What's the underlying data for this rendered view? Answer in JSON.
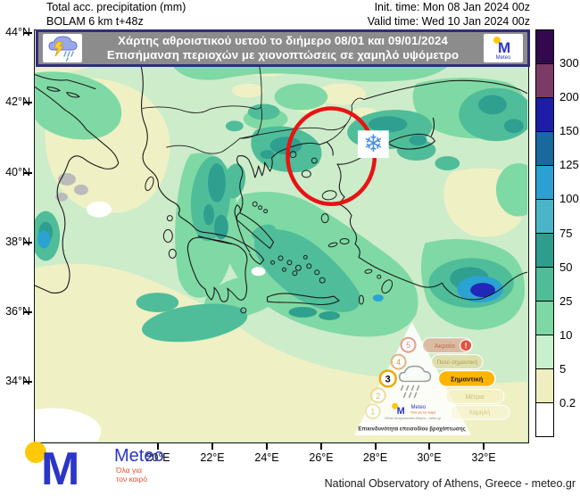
{
  "header": {
    "product": "Total acc. precipitation (mm)",
    "model": "BOLAM 6 km t+48z",
    "init_time": "Init. time: Mon 08 Jan 2024 00z",
    "valid_time": "Valid time: Wed 10 Jan 2024 00z"
  },
  "banner": {
    "line1": "Χάρτης αθροιστικού υετού το διήμερο 08/01 και 09/01/2024",
    "line2": "Επισήμανση περιοχών με χιονοπτώσεις σε χαμηλό υψόμετρο",
    "logo_label": "Meteo"
  },
  "colorbar": {
    "unit_values": [
      "300",
      "200",
      "150",
      "125",
      "100",
      "75",
      "50",
      "25",
      "10",
      "5",
      "0.2"
    ],
    "segment_colors": [
      "#32094e",
      "#7c3a67",
      "#1d1da8",
      "#17699e",
      "#2ba0d2",
      "#4ab5c8",
      "#2d9e8e",
      "#4fbd97",
      "#7ed8a3",
      "#c9f0cd",
      "#eeeec0",
      "#ffffff"
    ]
  },
  "axes": {
    "lat_ticks": [
      "44°N",
      "42°N",
      "40°N",
      "38°N",
      "36°N",
      "34°N"
    ],
    "lon_ticks": [
      "20°E",
      "22°E",
      "24°E",
      "26°E",
      "28°E",
      "30°E",
      "32°E"
    ]
  },
  "map": {
    "snowflake_icon": "❄"
  },
  "hazard_scale": {
    "levels": [
      {
        "num": "5",
        "label": "Ακραία"
      },
      {
        "num": "4",
        "label": "Πολύ σημαντική"
      },
      {
        "num": "3",
        "label": "Σημαντική"
      },
      {
        "num": "2",
        "label": "Μέτρια"
      },
      {
        "num": "1",
        "label": "Χαμηλή"
      }
    ],
    "active_level": "3",
    "caption": "Επικινδυνότητα επεισοδίου βροχόπτωσης",
    "logo_name": "Meteo",
    "logo_tagline": "Όλα για τον καιρό",
    "logo_org": "Εθνικό Αστεροσκοπείο Αθηνών - meteo.gr"
  },
  "footer": {
    "logo_name": "Meteo",
    "logo_tagline_line1": "Όλα για",
    "logo_tagline_line2": "τον καιρό",
    "credit": "National Observatory of Athens, Greece - meteo.gr"
  },
  "chart_data": {
    "type": "heatmap",
    "title": "Total acc. precipitation (mm)",
    "model_run": "BOLAM 6 km t+48z",
    "init_time": "Mon 08 Jan 2024 00z",
    "valid_time": "Wed 10 Jan 2024 00z",
    "region": "Greece and surrounding area",
    "lon_range_deg_e": [
      15.4,
      33.6
    ],
    "lat_range_deg_n": [
      32.2,
      44.1
    ],
    "scale_boundaries_mm": [
      0.2,
      5,
      10,
      25,
      50,
      75,
      100,
      125,
      150,
      200,
      300
    ],
    "legend_position": "right",
    "annotations": [
      "red ellipse highlighting NE Greece (Macedonia / Thrace)",
      "snowflake marker indicating low-altitude snowfall",
      "rainfall-episode hazard pyramid set to level 3 (Σημαντική) of 5"
    ]
  }
}
